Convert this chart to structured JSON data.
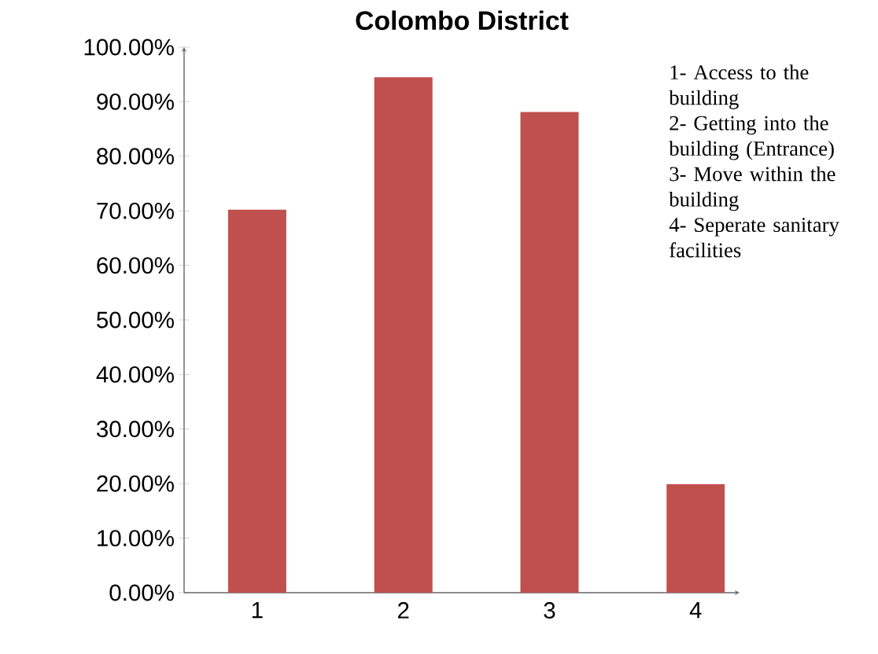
{
  "chart_data": {
    "type": "bar",
    "title": "Colombo District",
    "categories": [
      "1",
      "2",
      "3",
      "4"
    ],
    "values": [
      70.2,
      94.5,
      88.1,
      19.9
    ],
    "color": "#c0504d",
    "ylim": [
      0,
      100
    ],
    "yticks": [
      {
        "value": 0,
        "label": "0.00%"
      },
      {
        "value": 10,
        "label": "10.00%"
      },
      {
        "value": 20,
        "label": "20.00%"
      },
      {
        "value": 30,
        "label": "30.00%"
      },
      {
        "value": 40,
        "label": "40.00%"
      },
      {
        "value": 50,
        "label": "50.00%"
      },
      {
        "value": 60,
        "label": "60.00%"
      },
      {
        "value": 70,
        "label": "70.00%"
      },
      {
        "value": 80,
        "label": "80.00%"
      },
      {
        "value": 90,
        "label": "90.00%"
      },
      {
        "value": 100,
        "label": "100.00%"
      }
    ],
    "annotations": [
      "1- Access to the building",
      "2- Getting into the building (Entrance)",
      "3- Move within the building",
      "4- Seperate sanitary facilities"
    ]
  }
}
